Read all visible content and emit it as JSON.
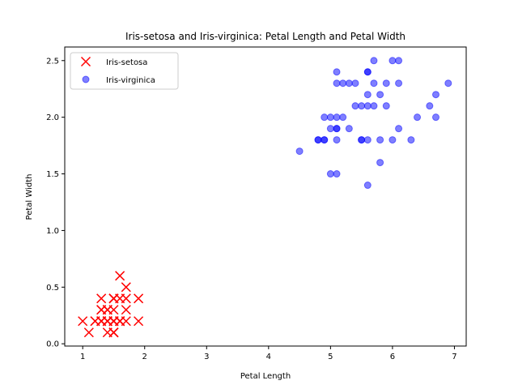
{
  "chart_data": {
    "type": "scatter",
    "title": "Iris-setosa and Iris-virginica: Petal Length and Petal Width",
    "xlabel": "Petal Length",
    "ylabel": "Petal Width",
    "xlim": [
      0.71,
      7.19
    ],
    "ylim": [
      -0.02,
      2.62
    ],
    "xticks": [
      1,
      2,
      3,
      4,
      5,
      6,
      7
    ],
    "yticks": [
      0.0,
      0.5,
      1.0,
      1.5,
      2.0,
      2.5
    ],
    "ytick_labels": [
      "0.0",
      "0.5",
      "1.0",
      "1.5",
      "2.0",
      "2.5"
    ],
    "grid": false,
    "legend_position": "top-left",
    "series": [
      {
        "name": "Iris-setosa",
        "marker": "x",
        "color": "#ff0000",
        "points": [
          [
            1.4,
            0.2
          ],
          [
            1.4,
            0.2
          ],
          [
            1.3,
            0.2
          ],
          [
            1.5,
            0.2
          ],
          [
            1.4,
            0.2
          ],
          [
            1.7,
            0.4
          ],
          [
            1.4,
            0.3
          ],
          [
            1.5,
            0.2
          ],
          [
            1.4,
            0.2
          ],
          [
            1.5,
            0.1
          ],
          [
            1.5,
            0.2
          ],
          [
            1.6,
            0.2
          ],
          [
            1.4,
            0.1
          ],
          [
            1.1,
            0.1
          ],
          [
            1.2,
            0.2
          ],
          [
            1.5,
            0.4
          ],
          [
            1.3,
            0.4
          ],
          [
            1.4,
            0.3
          ],
          [
            1.7,
            0.3
          ],
          [
            1.5,
            0.3
          ],
          [
            1.7,
            0.2
          ],
          [
            1.5,
            0.4
          ],
          [
            1.0,
            0.2
          ],
          [
            1.7,
            0.5
          ],
          [
            1.9,
            0.2
          ],
          [
            1.6,
            0.2
          ],
          [
            1.6,
            0.4
          ],
          [
            1.5,
            0.2
          ],
          [
            1.4,
            0.2
          ],
          [
            1.6,
            0.2
          ],
          [
            1.6,
            0.2
          ],
          [
            1.5,
            0.4
          ],
          [
            1.5,
            0.1
          ],
          [
            1.4,
            0.2
          ],
          [
            1.5,
            0.1
          ],
          [
            1.2,
            0.2
          ],
          [
            1.3,
            0.2
          ],
          [
            1.5,
            0.1
          ],
          [
            1.3,
            0.2
          ],
          [
            1.5,
            0.2
          ],
          [
            1.3,
            0.3
          ],
          [
            1.3,
            0.3
          ],
          [
            1.3,
            0.2
          ],
          [
            1.6,
            0.6
          ],
          [
            1.9,
            0.4
          ],
          [
            1.4,
            0.3
          ],
          [
            1.6,
            0.2
          ],
          [
            1.4,
            0.2
          ],
          [
            1.5,
            0.2
          ],
          [
            1.4,
            0.2
          ]
        ]
      },
      {
        "name": "Iris-virginica",
        "marker": "o",
        "color": "#0000ff",
        "alpha": 0.5,
        "points": [
          [
            6.0,
            2.5
          ],
          [
            5.1,
            1.9
          ],
          [
            5.9,
            2.1
          ],
          [
            5.6,
            1.8
          ],
          [
            5.8,
            2.2
          ],
          [
            6.6,
            2.1
          ],
          [
            4.5,
            1.7
          ],
          [
            6.3,
            1.8
          ],
          [
            5.8,
            1.8
          ],
          [
            6.1,
            2.5
          ],
          [
            5.1,
            2.0
          ],
          [
            5.3,
            1.9
          ],
          [
            5.5,
            2.1
          ],
          [
            5.0,
            2.0
          ],
          [
            5.1,
            2.4
          ],
          [
            5.3,
            2.3
          ],
          [
            5.5,
            1.8
          ],
          [
            6.7,
            2.2
          ],
          [
            6.9,
            2.3
          ],
          [
            5.0,
            1.5
          ],
          [
            5.7,
            2.3
          ],
          [
            4.9,
            2.0
          ],
          [
            6.7,
            2.0
          ],
          [
            4.9,
            1.8
          ],
          [
            5.7,
            2.1
          ],
          [
            6.0,
            1.8
          ],
          [
            4.8,
            1.8
          ],
          [
            4.9,
            1.8
          ],
          [
            5.6,
            2.1
          ],
          [
            5.8,
            1.6
          ],
          [
            6.1,
            1.9
          ],
          [
            6.4,
            2.0
          ],
          [
            5.6,
            2.2
          ],
          [
            5.1,
            1.5
          ],
          [
            5.6,
            1.4
          ],
          [
            6.1,
            2.3
          ],
          [
            5.6,
            2.4
          ],
          [
            5.5,
            1.8
          ],
          [
            4.8,
            1.8
          ],
          [
            5.4,
            2.1
          ],
          [
            5.6,
            2.4
          ],
          [
            5.1,
            2.3
          ],
          [
            5.1,
            1.9
          ],
          [
            5.9,
            2.3
          ],
          [
            5.7,
            2.5
          ],
          [
            5.2,
            2.3
          ],
          [
            5.0,
            1.9
          ],
          [
            5.2,
            2.0
          ],
          [
            5.4,
            2.3
          ],
          [
            5.1,
            1.8
          ]
        ]
      }
    ]
  }
}
